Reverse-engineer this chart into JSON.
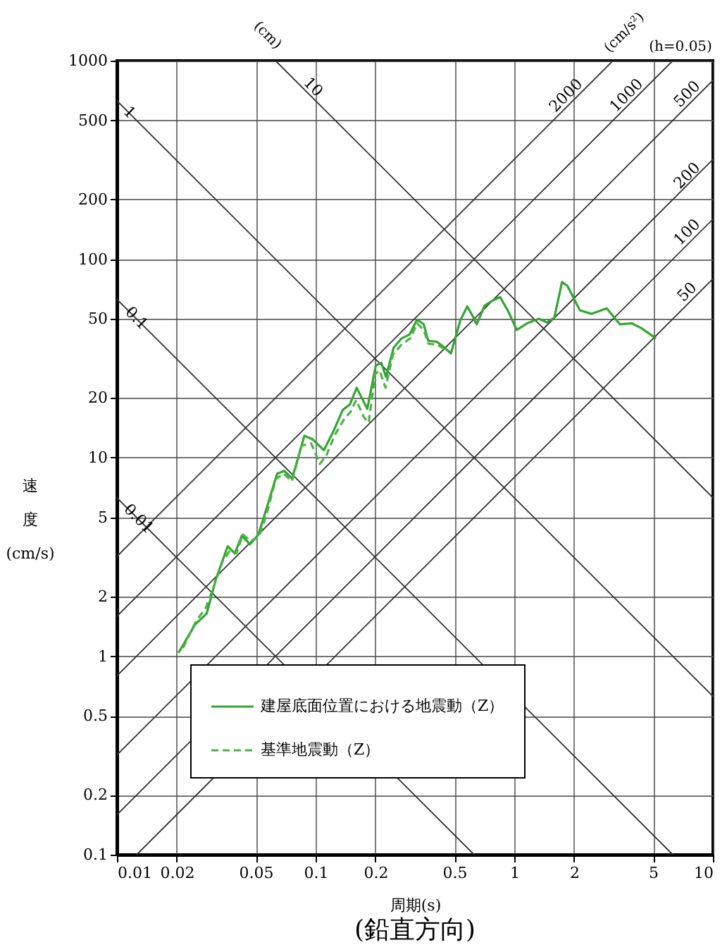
{
  "chart_data": {
    "type": "line",
    "title": "(鉛直方向)",
    "xlabel": "周期(s)",
    "ylabel": "速度(cm/s)",
    "log": "xy",
    "grid": true,
    "legend": "bottom",
    "xlim": [
      0.01,
      10
    ],
    "xticks": [
      0.01,
      0.02,
      0.05,
      0.1,
      0.2,
      0.5,
      1,
      2,
      5,
      10
    ],
    "ylim": [
      0.1,
      1000
    ],
    "yticks": [
      0.1,
      0.2,
      0.5,
      1,
      2,
      5,
      10,
      20,
      50,
      100,
      200,
      500,
      1000
    ],
    "series": [
      {
        "color": "#333333",
        "line_style": "solid",
        "x": [
          0.0628,
          10
        ],
        "values": [
          1000,
          6.28
        ]
      },
      {
        "color": "#333333",
        "line_style": "solid",
        "x": [
          0.01,
          10
        ],
        "values": [
          628,
          0.628
        ]
      },
      {
        "color": "#333333",
        "line_style": "solid",
        "x": [
          0.01,
          6.28
        ],
        "values": [
          62.8,
          0.1
        ]
      },
      {
        "color": "#333333",
        "line_style": "solid",
        "x": [
          0.01,
          0.628
        ],
        "values": [
          6.28,
          0.1
        ]
      },
      {
        "color": "#333333",
        "line_style": "solid",
        "x": [
          0.01,
          3.14
        ],
        "values": [
          3.18,
          1000
        ]
      },
      {
        "color": "#333333",
        "line_style": "solid",
        "x": [
          0.01,
          6.28
        ],
        "values": [
          1.59,
          1000
        ]
      },
      {
        "color": "#333333",
        "line_style": "solid",
        "x": [
          0.01,
          10
        ],
        "values": [
          0.796,
          796
        ]
      },
      {
        "color": "#333333",
        "line_style": "solid",
        "x": [
          0.01,
          10
        ],
        "values": [
          0.318,
          318
        ]
      },
      {
        "color": "#333333",
        "line_style": "solid",
        "x": [
          0.01,
          10
        ],
        "values": [
          0.159,
          159
        ]
      },
      {
        "color": "#333333",
        "line_style": "solid",
        "x": [
          0.01257,
          10
        ],
        "values": [
          0.1,
          79.6
        ]
      },
      {
        "name": "建屋底面位置における地震動（Z）",
        "color": "#33a532",
        "line_style": "solid",
        "x": [
          0.0204,
          0.0247,
          0.0283,
          0.0316,
          0.0361,
          0.0392,
          0.0425,
          0.0467,
          0.0515,
          0.0568,
          0.064,
          0.0694,
          0.0762,
          0.0878,
          0.0963,
          0.11,
          0.123,
          0.137,
          0.149,
          0.161,
          0.182,
          0.201,
          0.214,
          0.226,
          0.247,
          0.271,
          0.297,
          0.324,
          0.35,
          0.369,
          0.407,
          0.442,
          0.48,
          0.535,
          0.58,
          0.613,
          0.647,
          0.71,
          0.774,
          0.849,
          0.931,
          1.03,
          1.16,
          1.33,
          1.46,
          1.59,
          1.74,
          1.85,
          2.14,
          2.45,
          2.92,
          3.4,
          3.9,
          4.35,
          5.17
        ],
        "values": [
          1.04,
          1.44,
          1.64,
          2.47,
          3.58,
          3.29,
          4.04,
          3.66,
          4.09,
          5.61,
          8.3,
          8.58,
          7.86,
          12.9,
          12.4,
          10.9,
          13.6,
          17.4,
          18.6,
          22.5,
          17.6,
          29.1,
          30.1,
          25.5,
          35.8,
          39.9,
          41.7,
          49.6,
          47,
          38.8,
          38.4,
          36.1,
          33.5,
          49.1,
          57.8,
          52.4,
          47,
          58.4,
          61.7,
          64.4,
          54.7,
          44,
          47.5,
          50.1,
          48,
          50.7,
          76.7,
          73.4,
          55.3,
          53,
          56.5,
          47,
          47.5,
          45,
          39.9
        ]
      },
      {
        "name": "基準地震動（Z）",
        "color": "#4cb244",
        "line_style": "dashed",
        "x": [
          0.0215,
          0.025,
          0.028,
          0.031,
          0.034,
          0.037,
          0.04,
          0.043,
          0.047,
          0.052,
          0.057,
          0.063,
          0.069,
          0.076,
          0.085,
          0.095,
          0.105,
          0.113,
          0.125,
          0.14,
          0.15,
          0.16,
          0.175,
          0.185,
          0.2,
          0.21,
          0.225,
          0.245,
          0.27,
          0.3,
          0.325,
          0.35,
          0.37,
          0.41,
          0.45
        ],
        "values": [
          1.1,
          1.5,
          1.75,
          2.3,
          3,
          3.4,
          3.3,
          4.1,
          3.8,
          4,
          5.3,
          7.8,
          8.3,
          7.6,
          11.5,
          11.8,
          9.3,
          10.2,
          13,
          15.8,
          17,
          19.5,
          16,
          15,
          26.5,
          27.5,
          22.5,
          33,
          37,
          40,
          47.5,
          44,
          37.5,
          37,
          35
        ]
      }
    ],
    "annotations": [
      "(cm)",
      "(cm/s²)",
      "(h=0.05)",
      {
        "text": "1",
        "x": 0.0115,
        "y": 546
      },
      {
        "text": "10",
        "x": 0.0967,
        "y": 733
      },
      {
        "text": "0.1",
        "x": 0.0125,
        "y": 50.2
      },
      {
        "text": "0.01",
        "x": 0.0128,
        "y": 4.9
      },
      {
        "text": "2000",
        "x": 1.83,
        "y": 665
      },
      {
        "text": "1000",
        "x": 3.69,
        "y": 665
      },
      {
        "text": "500",
        "x": 7.45,
        "y": 675
      },
      {
        "text": "200",
        "x": 7.45,
        "y": 262
      },
      {
        "text": "100",
        "x": 7.45,
        "y": 136
      },
      {
        "text": "50",
        "x": 7.45,
        "y": 68
      }
    ]
  }
}
